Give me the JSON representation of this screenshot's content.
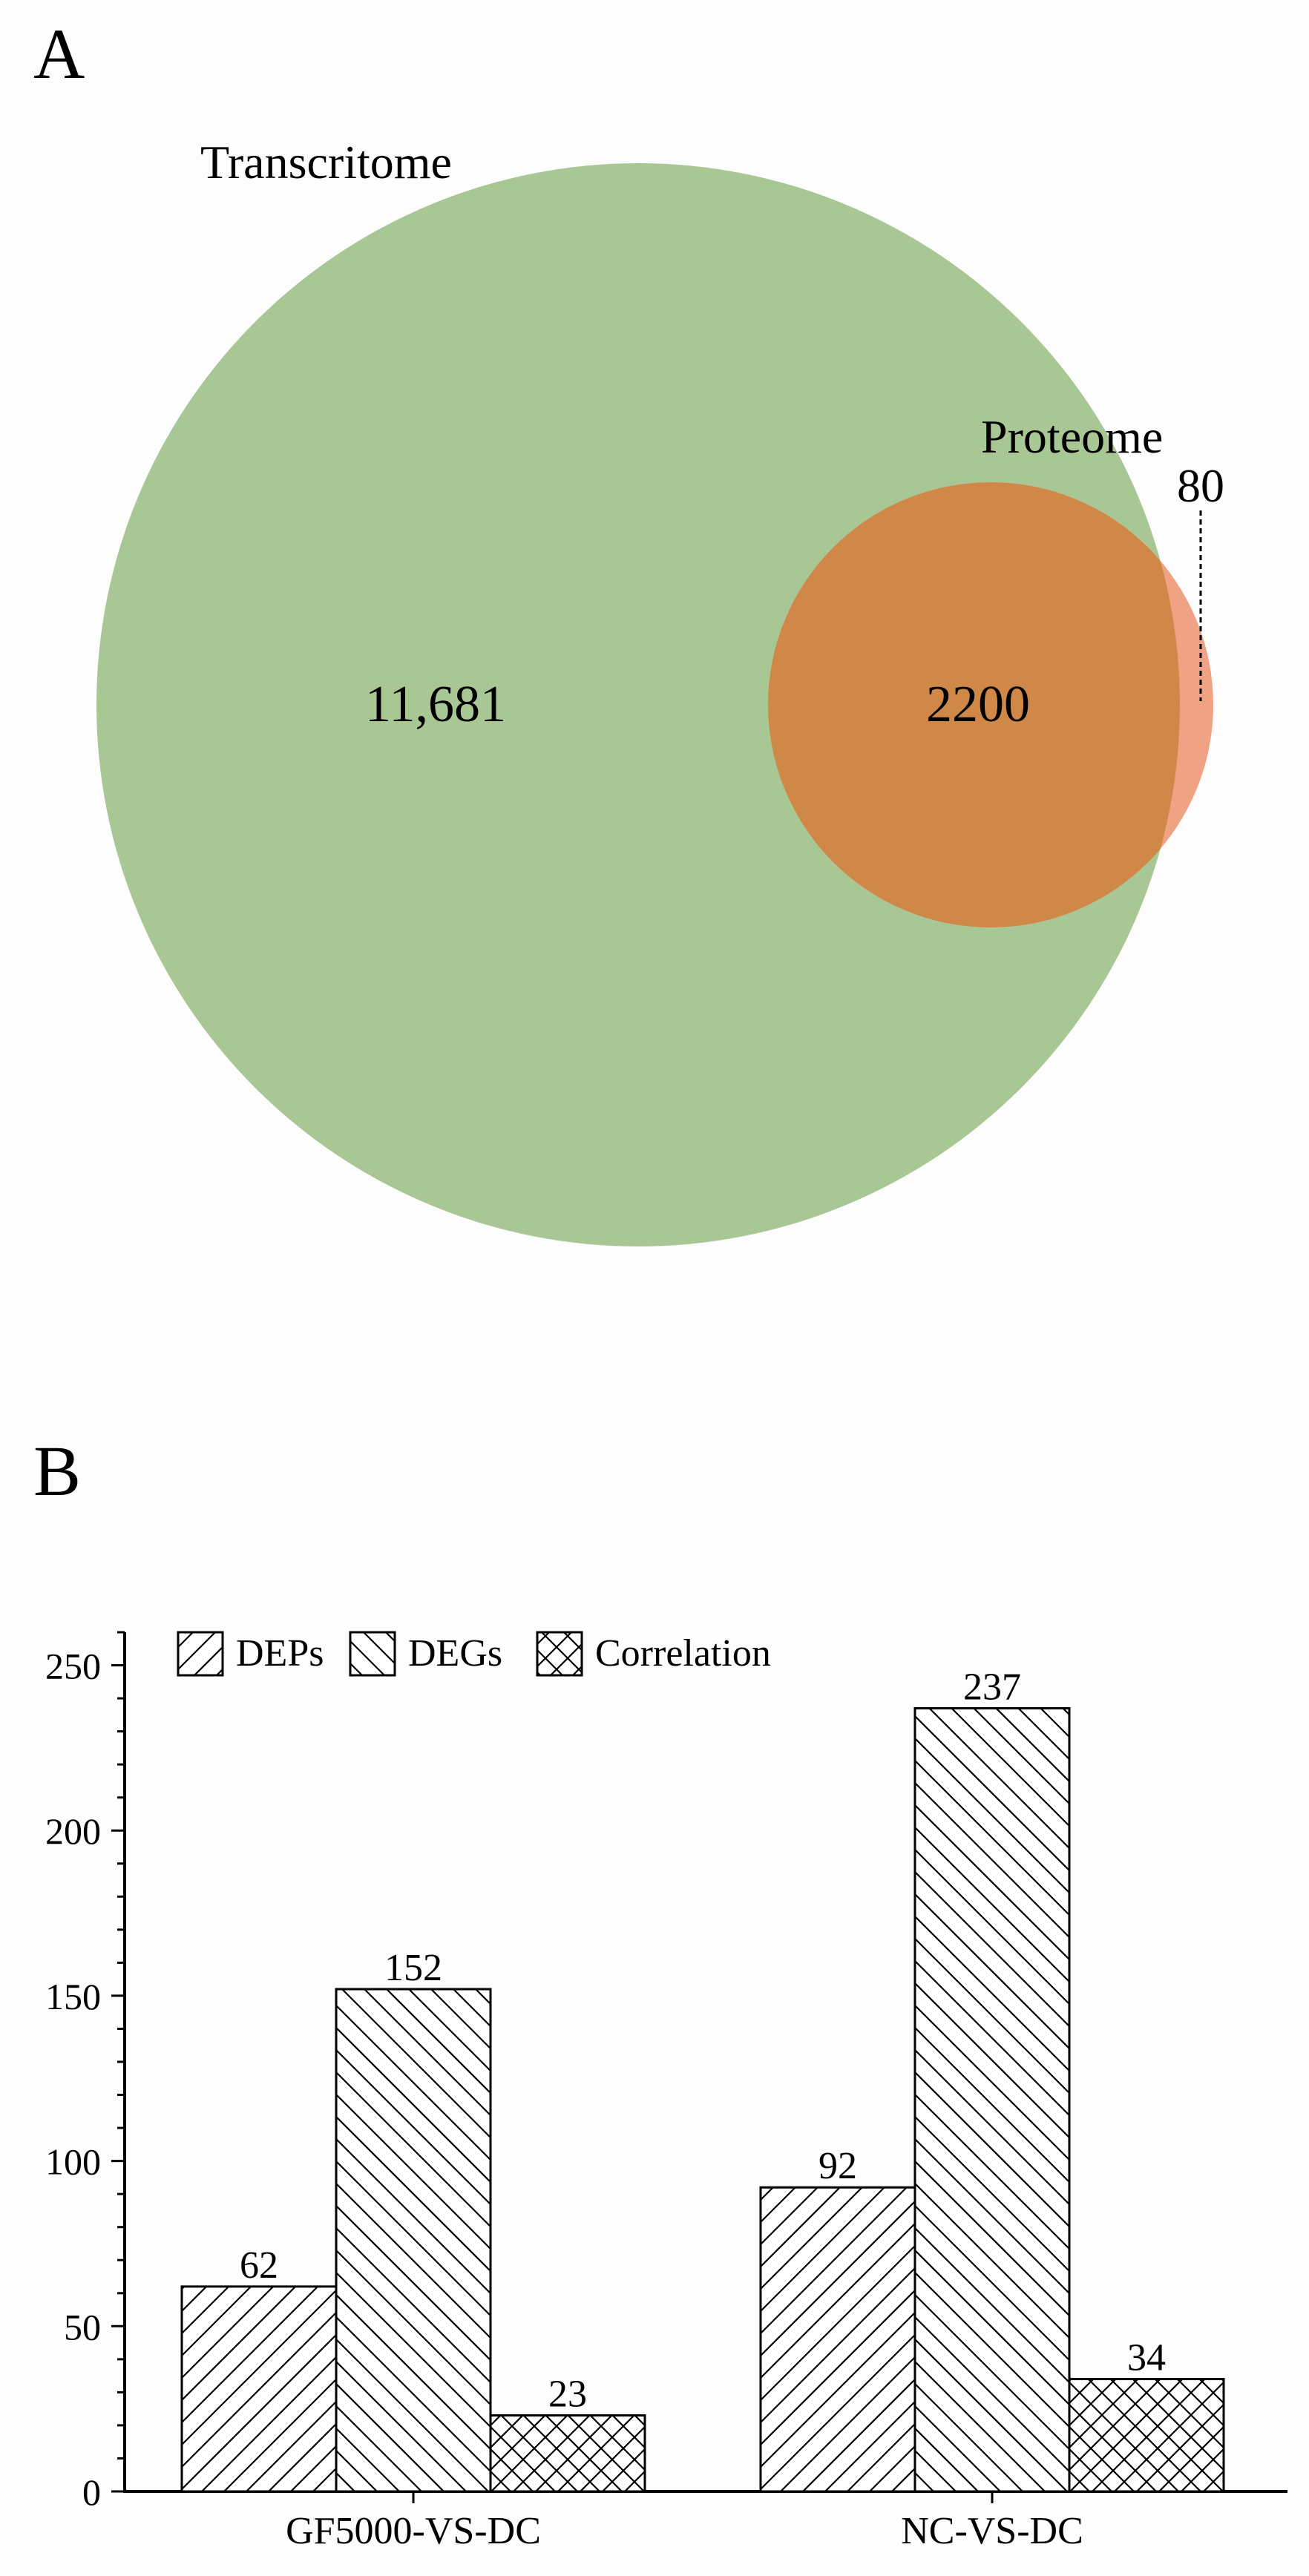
{
  "chart_data": [
    {
      "type": "venn",
      "panel_label": "A",
      "sets": [
        {
          "name": "Transcritome",
          "color": "#a8c794"
        },
        {
          "name": "Proteome",
          "color": "#f0a285"
        }
      ],
      "overlap_color": "#d08849",
      "regions": {
        "only_first": "11,681",
        "intersection": "2200",
        "only_second": "80"
      },
      "values": {
        "only_first": 11681,
        "intersection": 2200,
        "only_second": 80
      }
    },
    {
      "type": "bar",
      "panel_label": "B",
      "categories": [
        "GF5000-VS-DC",
        "NC-VS-DC"
      ],
      "series": [
        {
          "name": "DEPs",
          "pattern": "diagonal-up",
          "values": [
            62,
            92
          ]
        },
        {
          "name": "DEGs",
          "pattern": "diagonal-down",
          "values": [
            152,
            237
          ]
        },
        {
          "name": "Correlation",
          "pattern": "crosshatch",
          "values": [
            23,
            34
          ]
        }
      ],
      "ylim": [
        0,
        260
      ],
      "yticks": [
        0,
        50,
        100,
        150,
        200,
        250
      ],
      "legend_position": "top-left",
      "grid": false
    }
  ]
}
